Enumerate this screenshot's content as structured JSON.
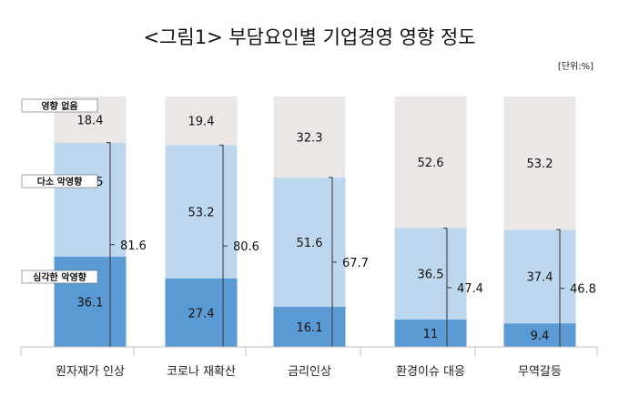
{
  "chart_data": {
    "type": "bar",
    "stacked": true,
    "normalized": true,
    "title": "<그림1> 부담요인별 기업경영 영향 정도",
    "unit": "[단위:%]",
    "categories": [
      "원자재가 인상",
      "코로나 재확산",
      "금리인상",
      "환경이슈 대응",
      "무역갈등"
    ],
    "series": [
      {
        "name": "심각한 악영향",
        "values": [
          36.1,
          27.4,
          16.1,
          11,
          9.4
        ],
        "color": "#5b9bd5"
      },
      {
        "name": "다소 악영향",
        "values": [
          45.5,
          53.2,
          51.6,
          36.5,
          37.4
        ],
        "color": "#bdd7ee"
      },
      {
        "name": "영향 없음",
        "values": [
          18.4,
          19.4,
          32.3,
          52.6,
          53.2
        ],
        "color": "#ebe7e7"
      }
    ],
    "totals": [
      81.6,
      80.6,
      67.7,
      47.4,
      46.8
    ],
    "ylim": [
      0,
      100
    ]
  }
}
